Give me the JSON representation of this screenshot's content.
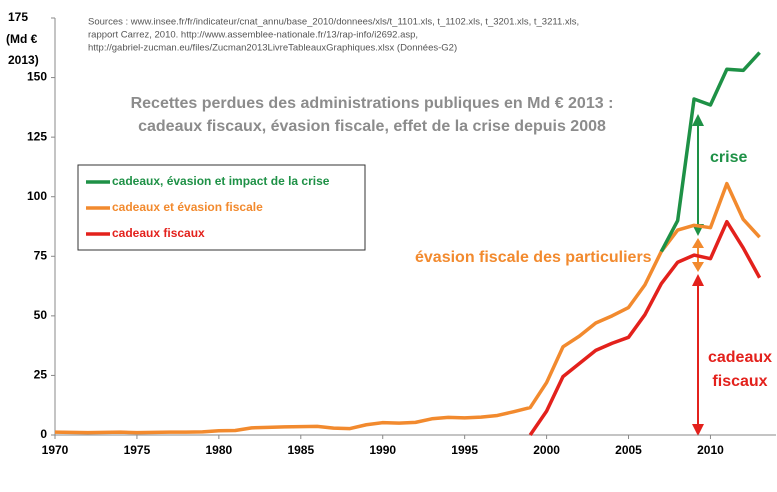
{
  "chart_data": {
    "type": "line",
    "title": [
      "Recettes perdues des administrations publiques en Md € 2013 :",
      "cadeaux fiscaux, évasion fiscale, effet de la crise depuis 2008"
    ],
    "source": [
      "Sources : www.insee.fr/fr/indicateur/cnat_annu/base_2010/donnees/xls/t_1101.xls, t_1102.xls, t_3201.xls, t_3211.xls,",
      "rapport Carrez, 2010. http://www.assemblee-nationale.fr/13/rap-info/i2692.asp,",
      "http://gabriel-zucman.eu/files/Zucman2013LivreTableauxGraphiques.xlsx (Données-G2)"
    ],
    "ylabel": [
      "(Md €",
      "2013)"
    ],
    "annotations": {
      "crise": "crise",
      "evasion": "évasion fiscale des particuliers",
      "cadeaux": [
        "cadeaux",
        "fiscaux"
      ]
    },
    "x": [
      1970,
      1971,
      1972,
      1973,
      1974,
      1975,
      1976,
      1977,
      1978,
      1979,
      1980,
      1981,
      1982,
      1983,
      1984,
      1985,
      1986,
      1987,
      1988,
      1989,
      1990,
      1991,
      1992,
      1993,
      1994,
      1995,
      1996,
      1997,
      1998,
      1999,
      2000,
      2001,
      2002,
      2003,
      2004,
      2005,
      2006,
      2007,
      2008,
      2009,
      2010,
      2011,
      2012,
      2013
    ],
    "series": [
      {
        "name": "cadeaux, évasion et impact de la crise",
        "color": "#1e9146",
        "values": [
          null,
          null,
          null,
          null,
          null,
          null,
          null,
          null,
          null,
          null,
          null,
          null,
          null,
          null,
          null,
          null,
          null,
          null,
          null,
          null,
          null,
          null,
          null,
          null,
          null,
          null,
          null,
          null,
          null,
          null,
          null,
          null,
          null,
          null,
          null,
          null,
          null,
          77,
          90,
          141,
          138.5,
          153.5,
          153,
          160.5
        ]
      },
      {
        "name": "cadeaux et évasion fiscale",
        "color": "#f28a2e",
        "values": [
          1.2,
          1.1,
          1.0,
          1.1,
          1.2,
          1.0,
          1.1,
          1.2,
          1.2,
          1.3,
          1.8,
          1.9,
          3.0,
          3.2,
          3.4,
          3.5,
          3.6,
          2.9,
          2.7,
          4.3,
          5.2,
          5.0,
          5.3,
          6.8,
          7.4,
          7.2,
          7.5,
          8.2,
          9.8,
          11.5,
          22,
          37,
          41.5,
          47,
          50,
          53.5,
          63,
          77,
          86,
          88,
          87,
          105.5,
          90.5,
          83
        ]
      },
      {
        "name": "cadeaux fiscaux",
        "color": "#e3211c",
        "values": [
          null,
          null,
          null,
          null,
          null,
          null,
          null,
          null,
          null,
          null,
          null,
          null,
          null,
          null,
          null,
          null,
          null,
          null,
          null,
          null,
          null,
          null,
          null,
          null,
          null,
          null,
          null,
          null,
          null,
          0,
          10,
          24.5,
          30,
          35.5,
          38.5,
          41,
          50.5,
          63.5,
          72.5,
          75.5,
          74,
          89.5,
          78.5,
          66
        ]
      }
    ],
    "xlim": [
      1970,
      2014
    ],
    "xticks": [
      1970,
      1975,
      1980,
      1985,
      1990,
      1995,
      2000,
      2005,
      2010
    ],
    "ylim": [
      0,
      175
    ],
    "yticks": [
      0,
      25,
      50,
      75,
      100,
      125,
      150,
      175
    ],
    "grid": false
  }
}
